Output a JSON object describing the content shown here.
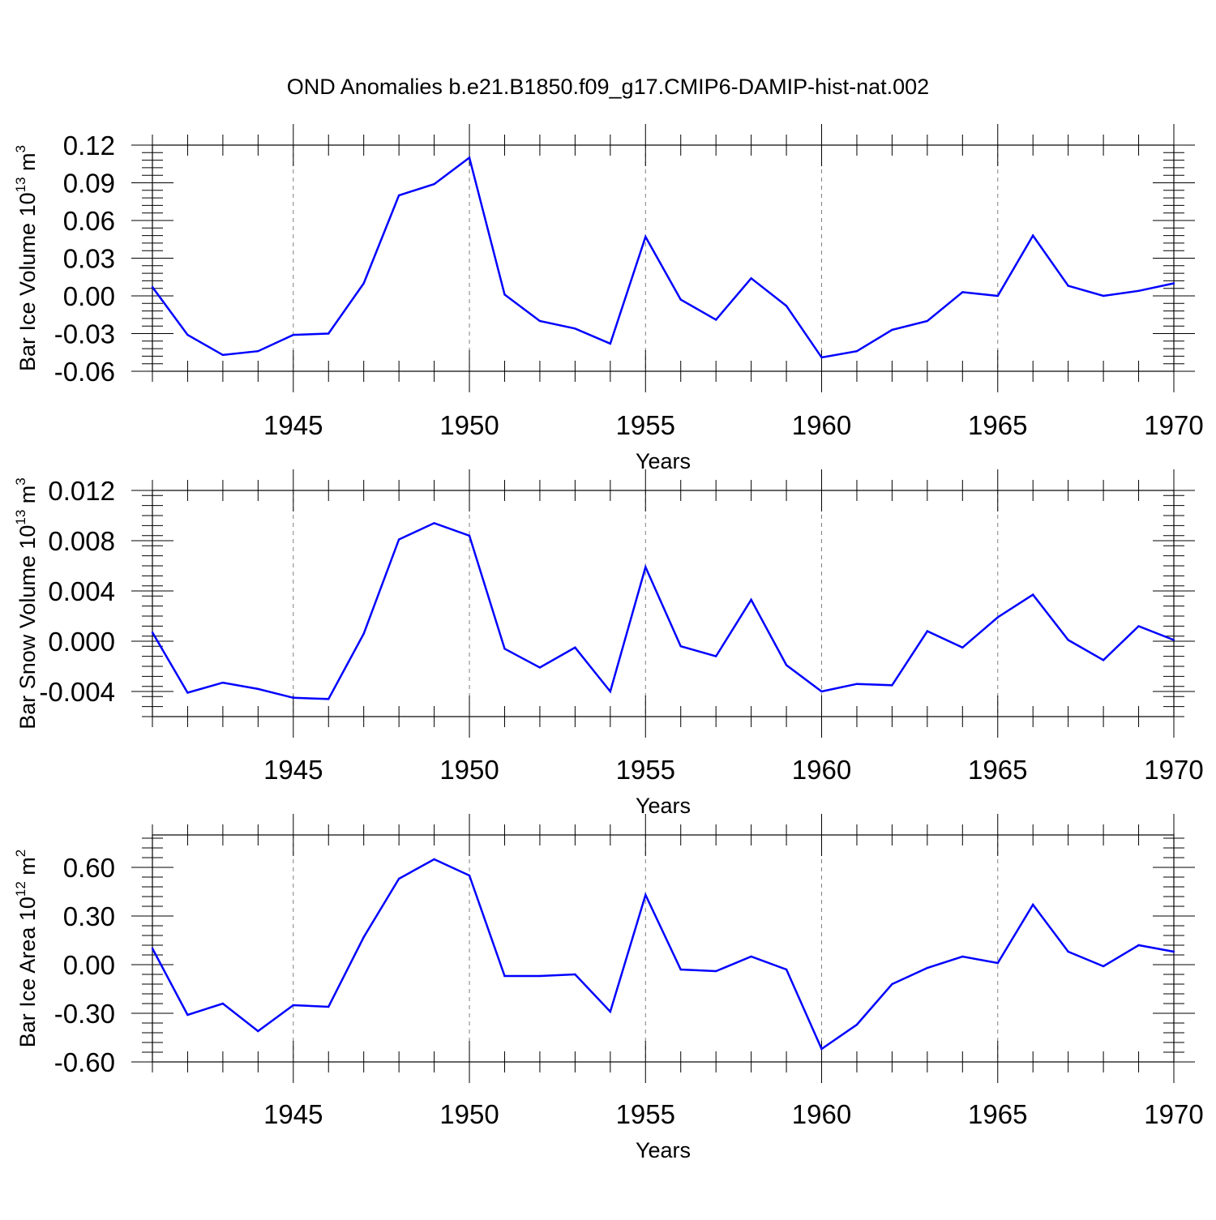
{
  "title": "OND Anomalies b.e21.B1850.f09_g17.CMIP6-DAMIP-hist-nat.002",
  "colors": {
    "series": "#0000ff",
    "axis": "#000000",
    "grid": "#7f7f7f"
  },
  "chart_data": [
    {
      "type": "line",
      "ylabel": {
        "text": "Bar Ice Volume 10",
        "exp": "13",
        "unit": " m",
        "unit_exp": "3"
      },
      "xlabel": "Years",
      "xlim": [
        1941,
        1970
      ],
      "ylim": [
        -0.06,
        0.12
      ],
      "yticks": [
        "0.12",
        "0.09",
        "0.06",
        "0.03",
        "0.00",
        "-0.03",
        "-0.06"
      ],
      "ytick_values": [
        0.12,
        0.09,
        0.06,
        0.03,
        0.0,
        -0.03,
        -0.06
      ],
      "xticks": [
        "1945",
        "1950",
        "1955",
        "1960",
        "1965",
        "1970"
      ],
      "xtick_values": [
        1945,
        1950,
        1955,
        1960,
        1965,
        1970
      ],
      "grid": "dashed vertical at major x ticks",
      "x": [
        1941,
        1942,
        1943,
        1944,
        1945,
        1946,
        1947,
        1948,
        1949,
        1950,
        1951,
        1952,
        1953,
        1954,
        1955,
        1956,
        1957,
        1958,
        1959,
        1960,
        1961,
        1962,
        1963,
        1964,
        1965,
        1966,
        1967,
        1968,
        1969,
        1970
      ],
      "values": [
        0.007,
        -0.031,
        -0.047,
        -0.044,
        -0.031,
        -0.03,
        0.01,
        0.08,
        0.089,
        0.11,
        0.001,
        -0.02,
        -0.026,
        -0.038,
        0.047,
        -0.003,
        -0.019,
        0.014,
        -0.008,
        -0.049,
        -0.044,
        -0.027,
        -0.02,
        0.003,
        0.0,
        0.048,
        0.008,
        0.0,
        0.004,
        0.01
      ]
    },
    {
      "type": "line",
      "ylabel": {
        "text": "Bar Snow Volume 10",
        "exp": "13",
        "unit": " m",
        "unit_exp": "3"
      },
      "xlabel": "Years",
      "xlim": [
        1941,
        1970
      ],
      "ylim": [
        -0.006,
        0.012
      ],
      "yticks": [
        "0.012",
        "0.008",
        "0.004",
        "0.000",
        "-0.004"
      ],
      "ytick_values": [
        0.012,
        0.008,
        0.004,
        0.0,
        -0.004
      ],
      "xticks": [
        "1945",
        "1950",
        "1955",
        "1960",
        "1965",
        "1970"
      ],
      "xtick_values": [
        1945,
        1950,
        1955,
        1960,
        1965,
        1970
      ],
      "grid": "dashed vertical at major x ticks",
      "x": [
        1941,
        1942,
        1943,
        1944,
        1945,
        1946,
        1947,
        1948,
        1949,
        1950,
        1951,
        1952,
        1953,
        1954,
        1955,
        1956,
        1957,
        1958,
        1959,
        1960,
        1961,
        1962,
        1963,
        1964,
        1965,
        1966,
        1967,
        1968,
        1969,
        1970
      ],
      "values": [
        0.0007,
        -0.0041,
        -0.0033,
        -0.0038,
        -0.0045,
        -0.0046,
        0.0006,
        0.0081,
        0.0094,
        0.0084,
        -0.0006,
        -0.0021,
        -0.0005,
        -0.004,
        0.0059,
        -0.0004,
        -0.0012,
        0.0033,
        -0.0019,
        -0.004,
        -0.0034,
        -0.0035,
        0.0008,
        -0.0005,
        0.0019,
        0.0037,
        0.0001,
        -0.0015,
        0.0012,
        0.0001
      ]
    },
    {
      "type": "line",
      "ylabel": {
        "text": "Bar Ice Area 10",
        "exp": "12",
        "unit": " m",
        "unit_exp": "2"
      },
      "xlabel": "Years",
      "xlim": [
        1941,
        1970
      ],
      "ylim": [
        -0.6,
        0.8
      ],
      "yticks": [
        "0.60",
        "0.30",
        "0.00",
        "-0.30",
        "-0.60"
      ],
      "ytick_values": [
        0.6,
        0.3,
        0.0,
        -0.3,
        -0.6
      ],
      "xticks": [
        "1945",
        "1950",
        "1955",
        "1960",
        "1965",
        "1970"
      ],
      "xtick_values": [
        1945,
        1950,
        1955,
        1960,
        1965,
        1970
      ],
      "grid": "dashed vertical at major x ticks",
      "x": [
        1941,
        1942,
        1943,
        1944,
        1945,
        1946,
        1947,
        1948,
        1949,
        1950,
        1951,
        1952,
        1953,
        1954,
        1955,
        1956,
        1957,
        1958,
        1959,
        1960,
        1961,
        1962,
        1963,
        1964,
        1965,
        1966,
        1967,
        1968,
        1969,
        1970
      ],
      "values": [
        0.1,
        -0.31,
        -0.24,
        -0.41,
        -0.25,
        -0.26,
        0.17,
        0.53,
        0.65,
        0.55,
        -0.07,
        -0.07,
        -0.06,
        -0.29,
        0.43,
        -0.03,
        -0.04,
        0.05,
        -0.03,
        -0.52,
        -0.37,
        -0.12,
        -0.02,
        0.05,
        0.01,
        0.37,
        0.08,
        -0.01,
        0.12,
        0.08
      ]
    }
  ]
}
